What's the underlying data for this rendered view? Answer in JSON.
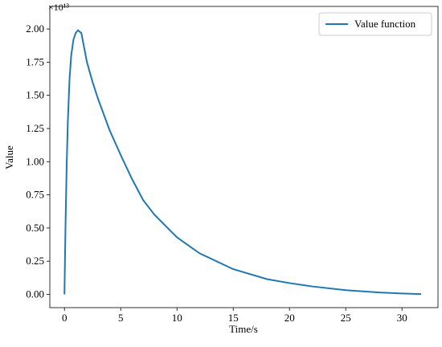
{
  "chart_data": {
    "type": "line",
    "x_label": "Time/s",
    "y_label": "Value",
    "y_offset_label": "×10¹³",
    "x": [
      0,
      0.1,
      0.2,
      0.3,
      0.45,
      0.6,
      0.8,
      1.0,
      1.2,
      1.5,
      2,
      2.5,
      3,
      4,
      5,
      6,
      7,
      8,
      10,
      12,
      15,
      18,
      20,
      22,
      25,
      28,
      30,
      31.7
    ],
    "series": [
      {
        "name": "Value function",
        "color": "#1f77b4",
        "values": [
          0,
          0.55,
          0.98,
          1.3,
          1.62,
          1.8,
          1.92,
          1.97,
          1.99,
          1.97,
          1.75,
          1.6,
          1.47,
          1.24,
          1.05,
          0.87,
          0.71,
          0.6,
          0.43,
          0.31,
          0.19,
          0.115,
          0.085,
          0.06,
          0.032,
          0.014,
          0.007,
          0.002
        ]
      }
    ],
    "xlim": [
      -1.3,
      33.2
    ],
    "ylim": [
      -0.1,
      2.17
    ],
    "xticks": [
      0,
      5,
      10,
      15,
      20,
      25,
      30
    ],
    "yticks": [
      {
        "value": 0,
        "label": "0.00"
      },
      {
        "value": 0.25,
        "label": "0.25"
      },
      {
        "value": 0.5,
        "label": "0.50"
      },
      {
        "value": 0.75,
        "label": "0.75"
      },
      {
        "value": 1,
        "label": "1.00"
      },
      {
        "value": 1.25,
        "label": "1.25"
      },
      {
        "value": 1.5,
        "label": "1.50"
      },
      {
        "value": 1.75,
        "label": "1.75"
      },
      {
        "value": 2,
        "label": "2.00"
      }
    ],
    "legend": "upper right",
    "grid": false
  }
}
